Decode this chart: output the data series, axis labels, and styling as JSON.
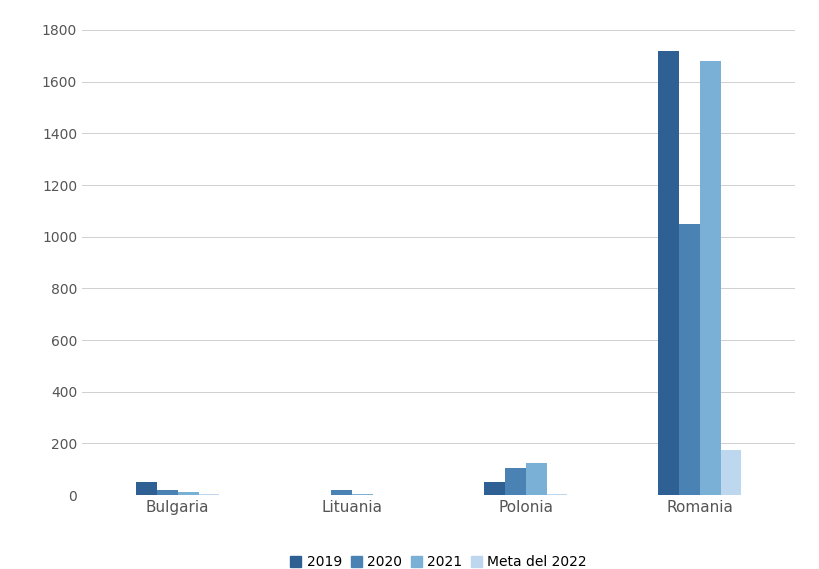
{
  "categories": [
    "Bulgaria",
    "Lituania",
    "Polonia",
    "Romania"
  ],
  "series": {
    "2019": [
      50,
      0,
      50,
      1720
    ],
    "2020": [
      20,
      20,
      105,
      1050
    ],
    "2021": [
      10,
      5,
      125,
      1680
    ],
    "Meta del 2022": [
      5,
      0,
      5,
      175
    ]
  },
  "colors": {
    "2019": "#2E6094",
    "2020": "#4A82B4",
    "2021": "#7AAFD6",
    "Meta del 2022": "#BDD7EE"
  },
  "ylim": [
    0,
    1850
  ],
  "yticks": [
    0,
    200,
    400,
    600,
    800,
    1000,
    1200,
    1400,
    1600,
    1800
  ],
  "background_color": "#FFFFFF",
  "grid_color": "#D0D0D0",
  "bar_width": 0.12,
  "figsize": [
    8.2,
    5.69
  ],
  "dpi": 100
}
